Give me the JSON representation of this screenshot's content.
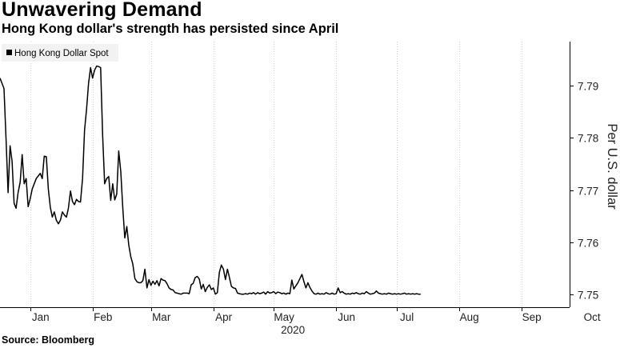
{
  "header": {
    "title": "Unwavering Demand",
    "subtitle": "Hong Kong dollar's strength has persisted since April"
  },
  "footer": {
    "source": "Source: Bloomberg"
  },
  "colors": {
    "line": "#000000",
    "grid": "#d0d0d0",
    "legend_bg": "#f2f2f2"
  },
  "chart_data": {
    "type": "line",
    "title": "Unwavering Demand",
    "subtitle": "Hong Kong dollar's strength has persisted since April",
    "xlabel": "2020",
    "ylabel": "Per U.S. dollar",
    "ylim": [
      7.7475,
      7.7985
    ],
    "xlim": [
      0,
      283
    ],
    "yticks": [
      7.75,
      7.76,
      7.77,
      7.78,
      7.79
    ],
    "ytick_labels": [
      "7.75",
      "7.76",
      "7.77",
      "7.78",
      "7.79"
    ],
    "xticks": [
      {
        "label": "Jan",
        "x": 15
      },
      {
        "label": "Feb",
        "x": 46
      },
      {
        "label": "Mar",
        "x": 75
      },
      {
        "label": "Apr",
        "x": 106
      },
      {
        "label": "May",
        "x": 136
      },
      {
        "label": "Jun",
        "x": 167
      },
      {
        "label": "Jul",
        "x": 197
      },
      {
        "label": "Aug",
        "x": 228
      },
      {
        "label": "Sep",
        "x": 259
      },
      {
        "label": "Oct",
        "x": 289
      }
    ],
    "year_label": "2020",
    "grid": "vertical",
    "legend": "top-left",
    "series": [
      {
        "name": "Hong Kong Dollar Spot",
        "color": "#000000",
        "points": [
          [
            0,
            7.7915
          ],
          [
            1,
            7.7905
          ],
          [
            2,
            7.7895
          ],
          [
            3,
            7.78
          ],
          [
            4,
            7.7695
          ],
          [
            5,
            7.7785
          ],
          [
            6,
            7.7755
          ],
          [
            7,
            7.7675
          ],
          [
            8,
            7.7665
          ],
          [
            9,
            7.7695
          ],
          [
            10,
            7.7715
          ],
          [
            11,
            7.7768
          ],
          [
            12,
            7.7712
          ],
          [
            13,
            7.7722
          ],
          [
            14,
            7.7668
          ],
          [
            15,
            7.7683
          ],
          [
            16,
            7.7702
          ],
          [
            17,
            7.7712
          ],
          [
            18,
            7.7722
          ],
          [
            19,
            7.7727
          ],
          [
            20,
            7.7732
          ],
          [
            21,
            7.7722
          ],
          [
            22,
            7.7765
          ],
          [
            23,
            7.7764
          ],
          [
            24,
            7.7702
          ],
          [
            25,
            7.7667
          ],
          [
            26,
            7.7648
          ],
          [
            27,
            7.7658
          ],
          [
            28,
            7.7642
          ],
          [
            29,
            7.7635
          ],
          [
            30,
            7.7642
          ],
          [
            31,
            7.7658
          ],
          [
            32,
            7.7652
          ],
          [
            33,
            7.7648
          ],
          [
            34,
            7.7665
          ],
          [
            35,
            7.7698
          ],
          [
            36,
            7.7678
          ],
          [
            37,
            7.7672
          ],
          [
            38,
            7.7682
          ],
          [
            39,
            7.7678
          ],
          [
            40,
            7.7677
          ],
          [
            41,
            7.7722
          ],
          [
            42,
            7.7815
          ],
          [
            43,
            7.7855
          ],
          [
            44,
            7.7905
          ],
          [
            45,
            7.7935
          ],
          [
            46,
            7.7915
          ],
          [
            47,
            7.793
          ],
          [
            48,
            7.7938
          ],
          [
            49,
            7.7937
          ],
          [
            50,
            7.7935
          ],
          [
            51,
            7.7805
          ],
          [
            52,
            7.7712
          ],
          [
            53,
            7.7722
          ],
          [
            54,
            7.7726
          ],
          [
            55,
            7.768
          ],
          [
            56,
            7.7712
          ],
          [
            57,
            7.7681
          ],
          [
            58,
            7.7692
          ],
          [
            59,
            7.7775
          ],
          [
            60,
            7.7735
          ],
          [
            61,
            7.7665
          ],
          [
            62,
            7.7608
          ],
          [
            63,
            7.763
          ],
          [
            64,
            7.7594
          ],
          [
            65,
            7.7572
          ],
          [
            66,
            7.7558
          ],
          [
            67,
            7.753
          ],
          [
            68,
            7.7524
          ],
          [
            69,
            7.7522
          ],
          [
            70,
            7.7522
          ],
          [
            71,
            7.7526
          ],
          [
            72,
            7.7548
          ],
          [
            73,
            7.7512
          ],
          [
            74,
            7.7528
          ],
          [
            75,
            7.7517
          ],
          [
            76,
            7.7525
          ],
          [
            77,
            7.7519
          ],
          [
            78,
            7.7526
          ],
          [
            79,
            7.7516
          ],
          [
            80,
            7.753
          ],
          [
            81,
            7.7527
          ],
          [
            82,
            7.7526
          ],
          [
            83,
            7.752
          ],
          [
            84,
            7.7512
          ],
          [
            85,
            7.7509
          ],
          [
            86,
            7.7508
          ],
          [
            87,
            7.7503
          ],
          [
            88,
            7.7502
          ],
          [
            89,
            7.7501
          ],
          [
            90,
            7.75
          ],
          [
            91,
            7.7502
          ],
          [
            92,
            7.7502
          ],
          [
            93,
            7.7502
          ],
          [
            94,
            7.7501
          ],
          [
            95,
            7.7518
          ],
          [
            96,
            7.7521
          ],
          [
            97,
            7.7532
          ],
          [
            98,
            7.7534
          ],
          [
            99,
            7.7529
          ],
          [
            100,
            7.751
          ],
          [
            101,
            7.7519
          ],
          [
            102,
            7.7505
          ],
          [
            103,
            7.7513
          ],
          [
            104,
            7.7518
          ],
          [
            105,
            7.7509
          ],
          [
            106,
            7.7512
          ],
          [
            107,
            7.75
          ],
          [
            108,
            7.7503
          ],
          [
            109,
            7.7542
          ],
          [
            110,
            7.7556
          ],
          [
            111,
            7.7548
          ],
          [
            112,
            7.7528
          ],
          [
            113,
            7.7548
          ],
          [
            114,
            7.7532
          ],
          [
            115,
            7.7515
          ],
          [
            116,
            7.7512
          ],
          [
            117,
            7.7511
          ],
          [
            118,
            7.7502
          ],
          [
            119,
            7.7501
          ],
          [
            120,
            7.75
          ],
          [
            121,
            7.75
          ],
          [
            122,
            7.7501
          ],
          [
            123,
            7.75
          ],
          [
            124,
            7.7502
          ],
          [
            125,
            7.7501
          ],
          [
            126,
            7.7503
          ],
          [
            127,
            7.75
          ],
          [
            128,
            7.7503
          ],
          [
            129,
            7.7501
          ],
          [
            130,
            7.7502
          ],
          [
            131,
            7.7504
          ],
          [
            132,
            7.75
          ],
          [
            133,
            7.7505
          ],
          [
            134,
            7.7502
          ],
          [
            135,
            7.7503
          ],
          [
            136,
            7.7505
          ],
          [
            137,
            7.7501
          ],
          [
            138,
            7.7504
          ],
          [
            139,
            7.7503
          ],
          [
            140,
            7.7501
          ],
          [
            141,
            7.7502
          ],
          [
            142,
            7.75
          ],
          [
            143,
            7.7502
          ],
          [
            144,
            7.7501
          ],
          [
            145,
            7.7527
          ],
          [
            146,
            7.751
          ],
          [
            147,
            7.7516
          ],
          [
            148,
            7.7522
          ],
          [
            149,
            7.753
          ],
          [
            150,
            7.7538
          ],
          [
            151,
            7.7524
          ],
          [
            152,
            7.7512
          ],
          [
            153,
            7.7522
          ],
          [
            154,
            7.7513
          ],
          [
            155,
            7.7506
          ],
          [
            156,
            7.7501
          ],
          [
            157,
            7.75
          ],
          [
            158,
            7.7502
          ],
          [
            159,
            7.75
          ],
          [
            160,
            7.7501
          ],
          [
            161,
            7.75
          ],
          [
            162,
            7.7503
          ],
          [
            163,
            7.7501
          ],
          [
            164,
            7.75
          ],
          [
            165,
            7.7502
          ],
          [
            166,
            7.75
          ],
          [
            167,
            7.7501
          ],
          [
            168,
            7.7512
          ],
          [
            169,
            7.7503
          ],
          [
            170,
            7.7505
          ],
          [
            171,
            7.7502
          ],
          [
            172,
            7.75
          ],
          [
            173,
            7.7501
          ],
          [
            174,
            7.75
          ],
          [
            175,
            7.7502
          ],
          [
            176,
            7.7501
          ],
          [
            177,
            7.7503
          ],
          [
            178,
            7.7501
          ],
          [
            179,
            7.75
          ],
          [
            180,
            7.7502
          ],
          [
            181,
            7.7501
          ],
          [
            182,
            7.7505
          ],
          [
            183,
            7.7502
          ],
          [
            184,
            7.75
          ],
          [
            185,
            7.7501
          ],
          [
            186,
            7.7502
          ],
          [
            187,
            7.7506
          ],
          [
            188,
            7.7502
          ],
          [
            189,
            7.7501
          ],
          [
            190,
            7.75
          ],
          [
            191,
            7.7501
          ],
          [
            192,
            7.75
          ],
          [
            193,
            7.7502
          ],
          [
            194,
            7.7501
          ],
          [
            195,
            7.75
          ],
          [
            196,
            7.7501
          ],
          [
            197,
            7.75
          ],
          [
            198,
            7.7501
          ],
          [
            199,
            7.75
          ],
          [
            200,
            7.7501
          ],
          [
            201,
            7.7502
          ],
          [
            202,
            7.75
          ],
          [
            203,
            7.7501
          ],
          [
            204,
            7.75
          ],
          [
            205,
            7.7501
          ],
          [
            206,
            7.75
          ],
          [
            207,
            7.7501
          ],
          [
            208,
            7.75
          ],
          [
            209,
            7.75
          ]
        ]
      }
    ]
  }
}
